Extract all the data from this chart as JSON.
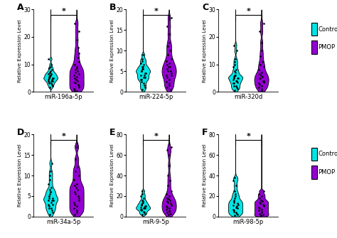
{
  "panels": [
    {
      "label": "A",
      "xlabel": "miR-196a-5p",
      "ylim": [
        0,
        30
      ],
      "yticks": [
        0,
        10,
        20,
        30
      ],
      "control_data": [
        1.5,
        2,
        2.5,
        3,
        3,
        3.5,
        4,
        4,
        4,
        4.5,
        4.5,
        5,
        5,
        5,
        5,
        5.5,
        5.5,
        6,
        6,
        6,
        6.5,
        6.5,
        7,
        7,
        7.5,
        8,
        8.5,
        9,
        10,
        12
      ],
      "pmop_data": [
        0.3,
        0.5,
        1,
        1.5,
        2,
        2.5,
        3,
        3.5,
        4,
        4.5,
        5,
        5.5,
        6,
        6.5,
        7,
        7.5,
        8,
        8.5,
        9,
        10,
        11,
        12.5,
        14,
        16,
        19,
        22,
        25
      ]
    },
    {
      "label": "B",
      "xlabel": "miR-224-5p",
      "ylim": [
        0,
        20
      ],
      "yticks": [
        0,
        5,
        10,
        15,
        20
      ],
      "control_data": [
        0.5,
        1,
        1.5,
        2,
        2.5,
        3,
        3,
        3.5,
        3.5,
        4,
        4,
        4.5,
        4.5,
        5,
        5,
        5,
        5.5,
        5.5,
        6,
        6,
        6.5,
        7,
        7.5,
        8,
        9
      ],
      "pmop_data": [
        0.5,
        1,
        1.5,
        2,
        2.5,
        3,
        3.5,
        4,
        4,
        4.5,
        5,
        5,
        5.5,
        6,
        6,
        6.5,
        7,
        7.5,
        8,
        9,
        10,
        11,
        12,
        14,
        16,
        18
      ]
    },
    {
      "label": "C",
      "xlabel": "miR-320d",
      "ylim": [
        0,
        30
      ],
      "yticks": [
        0,
        10,
        20,
        30
      ],
      "control_data": [
        0.5,
        1,
        1.5,
        2,
        2,
        3,
        3,
        3.5,
        4,
        4,
        4.5,
        5,
        5,
        5,
        5.5,
        5.5,
        6,
        6,
        7,
        7.5,
        8,
        9,
        10,
        11,
        12,
        15,
        17
      ],
      "pmop_data": [
        0.5,
        1,
        1.5,
        2,
        2.5,
        3,
        3.5,
        4,
        4,
        5,
        5,
        5.5,
        6,
        6.5,
        7,
        8,
        9,
        10,
        11,
        13,
        15,
        18,
        22,
        25
      ]
    },
    {
      "label": "D",
      "xlabel": "miR-34a-5p",
      "ylim": [
        0,
        20
      ],
      "yticks": [
        0,
        5,
        10,
        15,
        20
      ],
      "control_data": [
        0.5,
        1,
        1.5,
        2,
        2,
        2.5,
        3,
        3,
        3.5,
        4,
        4,
        4,
        4.5,
        4.5,
        5,
        5,
        5.5,
        6,
        6,
        6.5,
        7,
        8,
        9,
        10,
        11,
        13
      ],
      "pmop_data": [
        0.5,
        1,
        1.5,
        2,
        2.5,
        3,
        3.5,
        4,
        4.5,
        5,
        5.5,
        6,
        6.5,
        7,
        7.5,
        8,
        9,
        10,
        11,
        12,
        14,
        17
      ]
    },
    {
      "label": "E",
      "xlabel": "miR-9-5p",
      "ylim": [
        0,
        80
      ],
      "yticks": [
        0,
        20,
        40,
        60,
        80
      ],
      "control_data": [
        2,
        3,
        4,
        5,
        6,
        7,
        7,
        8,
        8,
        9,
        9,
        10,
        10,
        11,
        12,
        12,
        13,
        14,
        15,
        16,
        18,
        20,
        22,
        25
      ],
      "pmop_data": [
        2,
        3,
        4,
        5,
        6,
        7,
        8,
        9,
        10,
        11,
        12,
        13,
        14,
        15,
        16,
        17,
        18,
        20,
        22,
        25,
        30,
        35,
        40,
        50,
        60,
        65,
        68
      ]
    },
    {
      "label": "F",
      "xlabel": "miR-98-5p",
      "ylim": [
        0,
        80
      ],
      "yticks": [
        0,
        20,
        40,
        60,
        80
      ],
      "control_data": [
        1,
        2,
        3,
        4,
        5,
        6,
        7,
        8,
        9,
        10,
        11,
        12,
        13,
        14,
        15,
        16,
        18,
        20,
        22,
        25,
        30,
        35,
        38
      ],
      "pmop_data": [
        0.5,
        1,
        2,
        3,
        4,
        5,
        6,
        7,
        8,
        9,
        10,
        11,
        12,
        13,
        14,
        15,
        16,
        18,
        20,
        22,
        25
      ]
    }
  ],
  "control_color": "#00E5E5",
  "pmop_color": "#9400D3",
  "dot_color": "#000000",
  "violin_edge_color": "#000000",
  "bandwidth": 0.25
}
